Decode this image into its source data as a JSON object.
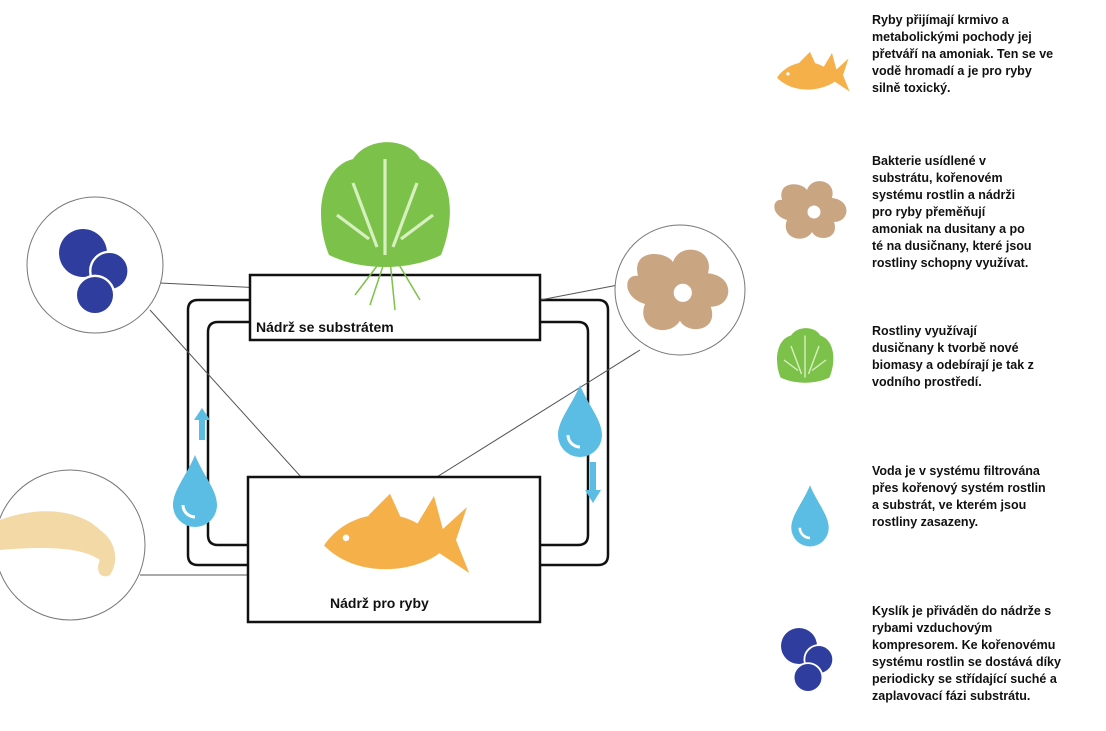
{
  "diagram": {
    "tanks": [
      {
        "label": "Nádrž se substrátem"
      },
      {
        "label": "Nádrž pro ryby"
      }
    ],
    "legend": [
      {
        "icon": "fish",
        "lines": [
          "Ryby přijímají krmivo a",
          "metabolickými pochody jej",
          "přetváří na amoniak. Ten se ve",
          "vodě hromadí a je pro ryby",
          "silně toxický."
        ]
      },
      {
        "icon": "bacteria",
        "lines": [
          "Bakterie usídlené v",
          "substrátu, kořenovém",
          "systému rostlin a nádrži",
          "pro ryby přeměňují",
          "amoniak na dusitany a po",
          "té na dusičnany, které jsou",
          "rostliny schopny využívat."
        ]
      },
      {
        "icon": "plant",
        "lines": [
          "Rostliny využívají",
          "dusičnany k tvorbě nové",
          "biomasy a odebírají je tak z",
          "vodního prostředí."
        ]
      },
      {
        "icon": "water",
        "lines": [
          "Voda je v systému filtrována",
          "přes kořenový systém rostlin",
          "a substrát, ve kterém jsou",
          "rostliny zasazeny."
        ]
      },
      {
        "icon": "oxygen",
        "lines": [
          "Kyslík je přiváděn do nádrže s",
          "rybami vzduchovým",
          "kompresorem. Ke kořenovému",
          "systému rostlin se dostává díky",
          "periodicky se střídající suché a",
          "zaplavovací fázi substrátu."
        ]
      }
    ]
  }
}
